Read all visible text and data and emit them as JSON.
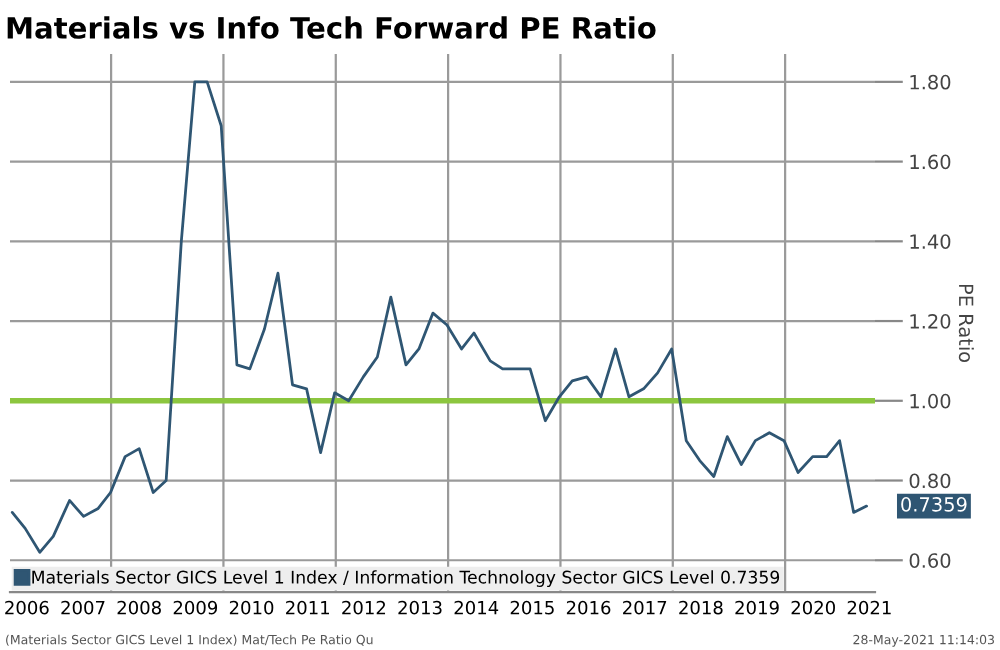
{
  "chart_data": {
    "type": "line",
    "title": "Materials vs Info Tech Forward PE Ratio",
    "ylabel": "PE Ratio",
    "x": [
      2006.24,
      2006.47,
      2006.73,
      2006.97,
      2007.26,
      2007.51,
      2007.77,
      2007.99,
      2008.25,
      2008.5,
      2008.75,
      2008.98,
      2009.25,
      2009.49,
      2009.71,
      2009.96,
      2010.24,
      2010.47,
      2010.73,
      2010.97,
      2011.23,
      2011.48,
      2011.73,
      2011.98,
      2012.23,
      2012.49,
      2012.74,
      2012.98,
      2013.25,
      2013.48,
      2013.73,
      2013.98,
      2014.24,
      2014.46,
      2014.75,
      2014.97,
      2015.46,
      2015.73,
      2015.98,
      2016.21,
      2016.47,
      2016.72,
      2016.98,
      2017.22,
      2017.48,
      2017.73,
      2017.98,
      2018.24,
      2018.48,
      2018.73,
      2018.97,
      2019.22,
      2019.47,
      2019.72,
      2019.98,
      2020.23,
      2020.49,
      2020.74,
      2020.97,
      2021.22,
      2021.45
    ],
    "series": [
      {
        "name": "Materials Sector GICS Level 1 Index / Information Technology Sector GICS Level 0.7359",
        "color": "#2f5673",
        "values": [
          0.72,
          0.68,
          0.62,
          0.66,
          0.75,
          0.71,
          0.73,
          0.77,
          0.86,
          0.88,
          0.77,
          0.8,
          1.4,
          1.8,
          1.8,
          1.69,
          1.09,
          1.08,
          1.18,
          1.32,
          1.04,
          1.03,
          0.87,
          1.02,
          1.0,
          1.06,
          1.11,
          1.26,
          1.09,
          1.13,
          1.22,
          1.19,
          1.13,
          1.17,
          1.1,
          1.08,
          1.08,
          0.95,
          1.01,
          1.05,
          1.06,
          1.01,
          1.13,
          1.01,
          1.03,
          1.07,
          1.13,
          0.9,
          0.85,
          0.81,
          0.91,
          0.84,
          0.9,
          0.92,
          0.9,
          0.82,
          0.86,
          0.86,
          0.9,
          0.72,
          0.7359
        ],
        "value_labels": [
          null,
          null,
          null,
          null,
          null,
          null,
          null,
          null,
          null,
          null,
          null,
          null,
          null,
          null,
          null,
          null,
          null,
          null,
          null,
          null,
          null,
          null,
          null,
          null,
          null,
          null,
          null,
          null,
          null,
          null,
          null,
          null,
          null,
          null,
          null,
          null,
          null,
          null,
          null,
          null,
          null,
          null,
          null,
          null,
          null,
          null,
          null,
          null,
          null,
          null,
          null,
          null,
          null,
          null,
          null,
          null,
          null,
          null,
          null,
          null,
          "0.7359"
        ]
      }
    ],
    "xlim": [
      2006.2,
      2021.6
    ],
    "xticks": [
      {
        "value": 2006.5,
        "label": "2006"
      },
      {
        "value": 2007.5,
        "label": "2007"
      },
      {
        "value": 2008,
        "label": null
      },
      {
        "value": 2008.5,
        "label": "2008"
      },
      {
        "value": 2009.5,
        "label": "2009"
      },
      {
        "value": 2010,
        "label": null
      },
      {
        "value": 2010.5,
        "label": "2010"
      },
      {
        "value": 2011.5,
        "label": "2011"
      },
      {
        "value": 2012,
        "label": null
      },
      {
        "value": 2012.5,
        "label": "2012"
      },
      {
        "value": 2013.5,
        "label": "2013"
      },
      {
        "value": 2014,
        "label": null
      },
      {
        "value": 2014.5,
        "label": "2014"
      },
      {
        "value": 2015.5,
        "label": "2015"
      },
      {
        "value": 2016,
        "label": null
      },
      {
        "value": 2016.5,
        "label": "2016"
      },
      {
        "value": 2017.5,
        "label": "2017"
      },
      {
        "value": 2018,
        "label": null
      },
      {
        "value": 2018.5,
        "label": "2018"
      },
      {
        "value": 2019.5,
        "label": "2019"
      },
      {
        "value": 2020,
        "label": null
      },
      {
        "value": 2020.5,
        "label": "2020"
      },
      {
        "value": 2021.5,
        "label": "2021"
      }
    ],
    "ylim": [
      0.52,
      1.87
    ],
    "yticks": [
      {
        "value": 0.6,
        "label": "0.60"
      },
      {
        "value": 0.8,
        "label": "0.80"
      },
      {
        "value": 1.0,
        "label": "1.00"
      },
      {
        "value": 1.2,
        "label": "1.20"
      },
      {
        "value": 1.4,
        "label": "1.40"
      },
      {
        "value": 1.6,
        "label": "1.60"
      },
      {
        "value": 1.8,
        "label": "1.80"
      }
    ],
    "ref_lines": [
      {
        "axis": "y",
        "value": 1.0,
        "color": "#8cc63f"
      }
    ],
    "grid": true,
    "legend": "bottom left",
    "annotations": [
      "(Materials Sector GICS Level 1 Index) Mat/Tech Pe Ratio Qu",
      "28-May-2021 11:14:03"
    ]
  }
}
